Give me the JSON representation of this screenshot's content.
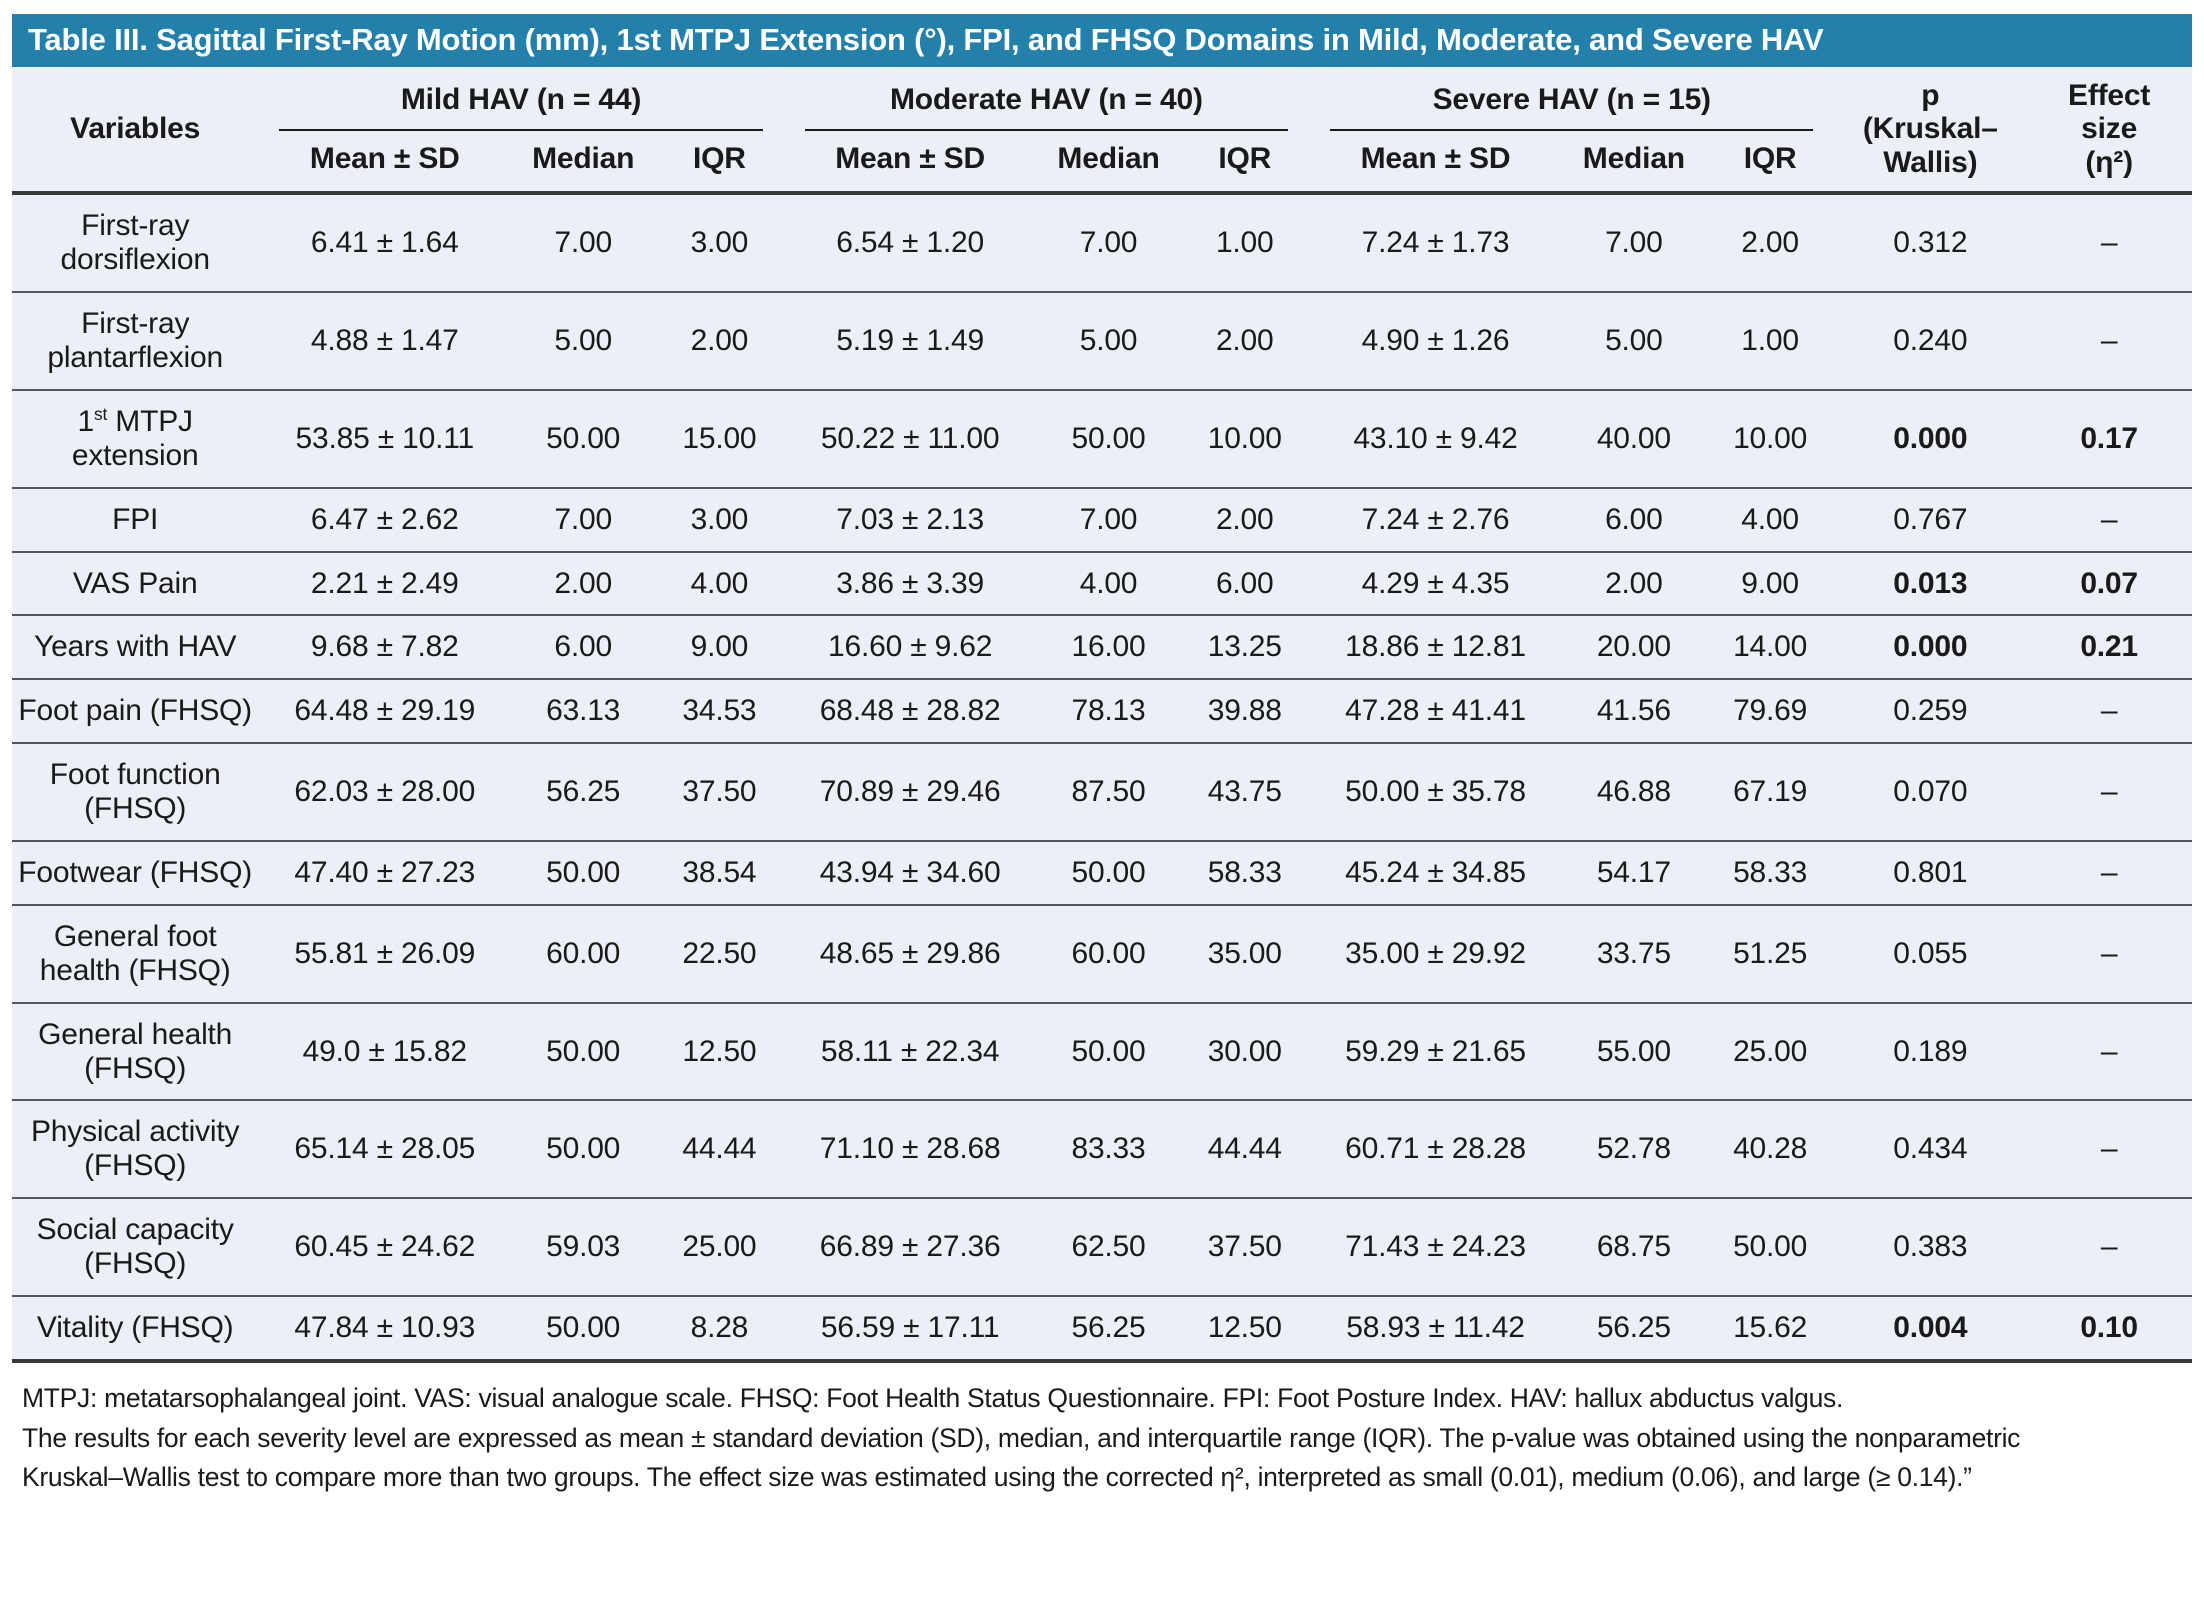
{
  "title": "Table III. Sagittal First-Ray Motion (mm), 1st MTPJ Extension (°), FPI, and FHSQ Domains in Mild, Moderate, and Severe HAV",
  "colors": {
    "title_bar": "#2280ab",
    "table_bg": "#eceff6",
    "rule_dark": "#3a3a3a",
    "rule_row": "#55575b"
  },
  "header": {
    "variables": "Variables",
    "groups": [
      {
        "label": "Mild HAV (n = 44)"
      },
      {
        "label": "Moderate HAV (n = 40)"
      },
      {
        "label": "Severe HAV (n = 15)"
      }
    ],
    "sub": [
      "Mean ± SD",
      "Median",
      "IQR"
    ],
    "p_line1": "p",
    "p_line2": "(Kruskal–Wallis)",
    "effect_line1": "Effect size",
    "effect_line2": "(η²)"
  },
  "rows": [
    {
      "label": "First-ray dorsiflexion",
      "mild": [
        "6.41 ± 1.64",
        "7.00",
        "3.00"
      ],
      "moderate": [
        "6.54 ± 1.20",
        "7.00",
        "1.00"
      ],
      "severe": [
        "7.24 ± 1.73",
        "7.00",
        "2.00"
      ],
      "p": "0.312",
      "effect": "–",
      "significant": false
    },
    {
      "label": "First-ray plantarflexion",
      "mild": [
        "4.88 ± 1.47",
        "5.00",
        "2.00"
      ],
      "moderate": [
        "5.19 ± 1.49",
        "5.00",
        "2.00"
      ],
      "severe": [
        "4.90 ± 1.26",
        "5.00",
        "1.00"
      ],
      "p": "0.240",
      "effect": "–",
      "significant": false
    },
    {
      "label_parts": {
        "pre": "1",
        "sup": "st",
        "post": " MTPJ extension"
      },
      "mild": [
        "53.85 ± 10.11",
        "50.00",
        "15.00"
      ],
      "moderate": [
        "50.22 ± 11.00",
        "50.00",
        "10.00"
      ],
      "severe": [
        "43.10 ± 9.42",
        "40.00",
        "10.00"
      ],
      "p": "0.000",
      "effect": "0.17",
      "significant": true
    },
    {
      "label": "FPI",
      "mild": [
        "6.47 ± 2.62",
        "7.00",
        "3.00"
      ],
      "moderate": [
        "7.03 ± 2.13",
        "7.00",
        "2.00"
      ],
      "severe": [
        "7.24 ± 2.76",
        "6.00",
        "4.00"
      ],
      "p": "0.767",
      "effect": "–",
      "significant": false
    },
    {
      "label": "VAS Pain",
      "mild": [
        "2.21 ± 2.49",
        "2.00",
        "4.00"
      ],
      "moderate": [
        "3.86 ± 3.39",
        "4.00",
        "6.00"
      ],
      "severe": [
        "4.29 ± 4.35",
        "2.00",
        "9.00"
      ],
      "p": "0.013",
      "effect": "0.07",
      "significant": true
    },
    {
      "label": "Years with HAV",
      "mild": [
        "9.68 ± 7.82",
        "6.00",
        "9.00"
      ],
      "moderate": [
        "16.60 ± 9.62",
        "16.00",
        "13.25"
      ],
      "severe": [
        "18.86 ± 12.81",
        "20.00",
        "14.00"
      ],
      "p": "0.000",
      "effect": "0.21",
      "significant": true
    },
    {
      "label": "Foot pain (FHSQ)",
      "mild": [
        "64.48 ± 29.19",
        "63.13",
        "34.53"
      ],
      "moderate": [
        "68.48 ± 28.82",
        "78.13",
        "39.88"
      ],
      "severe": [
        "47.28 ± 41.41",
        "41.56",
        "79.69"
      ],
      "p": "0.259",
      "effect": "–",
      "significant": false
    },
    {
      "label": "Foot function (FHSQ)",
      "mild": [
        "62.03 ± 28.00",
        "56.25",
        "37.50"
      ],
      "moderate": [
        "70.89 ± 29.46",
        "87.50",
        "43.75"
      ],
      "severe": [
        "50.00 ± 35.78",
        "46.88",
        "67.19"
      ],
      "p": "0.070",
      "effect": "–",
      "significant": false
    },
    {
      "label": "Footwear (FHSQ)",
      "mild": [
        "47.40 ± 27.23",
        "50.00",
        "38.54"
      ],
      "moderate": [
        "43.94 ± 34.60",
        "50.00",
        "58.33"
      ],
      "severe": [
        "45.24 ± 34.85",
        "54.17",
        "58.33"
      ],
      "p": "0.801",
      "effect": "–",
      "significant": false
    },
    {
      "label": "General foot health (FHSQ)",
      "mild": [
        "55.81 ± 26.09",
        "60.00",
        "22.50"
      ],
      "moderate": [
        "48.65 ± 29.86",
        "60.00",
        "35.00"
      ],
      "severe": [
        "35.00 ± 29.92",
        "33.75",
        "51.25"
      ],
      "p": "0.055",
      "effect": "–",
      "significant": false
    },
    {
      "label": "General health (FHSQ)",
      "mild": [
        "49.0 ± 15.82",
        "50.00",
        "12.50"
      ],
      "moderate": [
        "58.11 ± 22.34",
        "50.00",
        "30.00"
      ],
      "severe": [
        "59.29 ± 21.65",
        "55.00",
        "25.00"
      ],
      "p": "0.189",
      "effect": "–",
      "significant": false
    },
    {
      "label": "Physical activity (FHSQ)",
      "mild": [
        "65.14 ± 28.05",
        "50.00",
        "44.44"
      ],
      "moderate": [
        "71.10 ± 28.68",
        "83.33",
        "44.44"
      ],
      "severe": [
        "60.71 ± 28.28",
        "52.78",
        "40.28"
      ],
      "p": "0.434",
      "effect": "–",
      "significant": false
    },
    {
      "label": "Social capacity (FHSQ)",
      "mild": [
        "60.45 ± 24.62",
        "59.03",
        "25.00"
      ],
      "moderate": [
        "66.89 ± 27.36",
        "62.50",
        "37.50"
      ],
      "severe": [
        "71.43 ± 24.23",
        "68.75",
        "50.00"
      ],
      "p": "0.383",
      "effect": "–",
      "significant": false
    },
    {
      "label": "Vitality (FHSQ)",
      "mild": [
        "47.84 ± 10.93",
        "50.00",
        "8.28"
      ],
      "moderate": [
        "56.59 ± 17.11",
        "56.25",
        "12.50"
      ],
      "severe": [
        "58.93 ± 11.42",
        "56.25",
        "15.62"
      ],
      "p": "0.004",
      "effect": "0.10",
      "significant": true
    }
  ],
  "footnotes": [
    "MTPJ: metatarsophalangeal joint. VAS: visual analogue scale. FHSQ: Foot Health Status Questionnaire. FPI: Foot Posture Index. HAV: hallux abductus valgus.",
    "The results for each severity level are expressed as mean ± standard deviation (SD), median, and interquartile range (IQR). The p-value was obtained using the nonparametric",
    "Kruskal–Wallis test to compare more than two groups. The effect size was estimated using the corrected η², interpreted as small (0.01), medium (0.06), and large (≥ 0.14).”"
  ]
}
